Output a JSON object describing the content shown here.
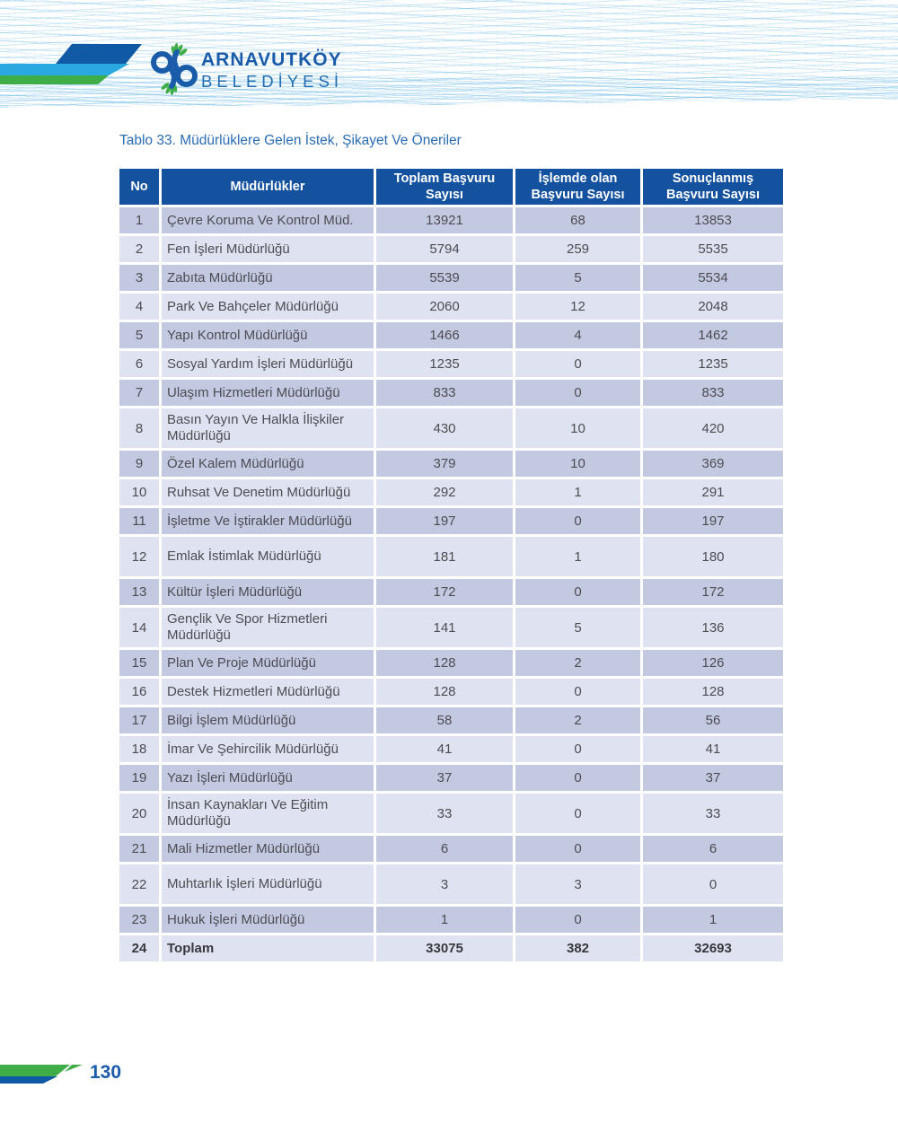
{
  "header": {
    "org_name_line1": "ARNAVUTKÖY",
    "org_name_line2": "BELEDİYESİ"
  },
  "title": "Tablo 33. Müdürlüklere Gelen İstek, Şikayet Ve Öneriler",
  "table": {
    "columns": [
      "No",
      "Müdürlükler",
      "Toplam Başvuru Sayısı",
      "İşlemde olan Başvuru Sayısı",
      "Sonuçlanmış Başvuru Sayısı"
    ],
    "rows": [
      {
        "no": "1",
        "name": "Çevre Koruma Ve Kontrol Müd.",
        "toplam": "13921",
        "islemde": "68",
        "sonuclanmis": "13853",
        "tall": false,
        "bold": false
      },
      {
        "no": "2",
        "name": "Fen İşleri Müdürlüğü",
        "toplam": "5794",
        "islemde": "259",
        "sonuclanmis": "5535",
        "tall": false,
        "bold": false
      },
      {
        "no": "3",
        "name": "Zabıta Müdürlüğü",
        "toplam": "5539",
        "islemde": "5",
        "sonuclanmis": "5534",
        "tall": false,
        "bold": false
      },
      {
        "no": "4",
        "name": "Park Ve Bahçeler Müdürlüğü",
        "toplam": "2060",
        "islemde": "12",
        "sonuclanmis": "2048",
        "tall": false,
        "bold": false
      },
      {
        "no": "5",
        "name": "Yapı Kontrol Müdürlüğü",
        "toplam": "1466",
        "islemde": "4",
        "sonuclanmis": "1462",
        "tall": false,
        "bold": false
      },
      {
        "no": "6",
        "name": "Sosyal Yardım İşleri Müdürlüğü",
        "toplam": "1235",
        "islemde": "0",
        "sonuclanmis": "1235",
        "tall": false,
        "bold": false
      },
      {
        "no": "7",
        "name": "Ulaşım Hizmetleri Müdürlüğü",
        "toplam": "833",
        "islemde": "0",
        "sonuclanmis": "833",
        "tall": false,
        "bold": false
      },
      {
        "no": "8",
        "name": "Basın Yayın Ve Halkla İlişkiler Müdürlüğü",
        "toplam": "430",
        "islemde": "10",
        "sonuclanmis": "420",
        "tall": true,
        "bold": false
      },
      {
        "no": "9",
        "name": "Özel Kalem Müdürlüğü",
        "toplam": "379",
        "islemde": "10",
        "sonuclanmis": "369",
        "tall": false,
        "bold": false
      },
      {
        "no": "10",
        "name": "Ruhsat Ve Denetim Müdürlüğü",
        "toplam": "292",
        "islemde": "1",
        "sonuclanmis": "291",
        "tall": false,
        "bold": false
      },
      {
        "no": "11",
        "name": "İşletme Ve İştirakler Müdürlüğü",
        "toplam": "197",
        "islemde": "0",
        "sonuclanmis": "197",
        "tall": false,
        "bold": false
      },
      {
        "no": "12",
        "name": "Emlak İstimlak Müdürlüğü",
        "toplam": "181",
        "islemde": "1",
        "sonuclanmis": "180",
        "tall": true,
        "bold": false
      },
      {
        "no": "13",
        "name": "Kültür İşleri Müdürlüğü",
        "toplam": "172",
        "islemde": "0",
        "sonuclanmis": "172",
        "tall": false,
        "bold": false
      },
      {
        "no": "14",
        "name": "Gençlik Ve Spor Hizmetleri Müdürlüğü",
        "toplam": "141",
        "islemde": "5",
        "sonuclanmis": "136",
        "tall": true,
        "bold": false
      },
      {
        "no": "15",
        "name": "Plan Ve Proje Müdürlüğü",
        "toplam": "128",
        "islemde": "2",
        "sonuclanmis": "126",
        "tall": false,
        "bold": false
      },
      {
        "no": "16",
        "name": "Destek Hizmetleri Müdürlüğü",
        "toplam": "128",
        "islemde": "0",
        "sonuclanmis": "128",
        "tall": false,
        "bold": false
      },
      {
        "no": "17",
        "name": "Bilgi İşlem Müdürlüğü",
        "toplam": "58",
        "islemde": "2",
        "sonuclanmis": "56",
        "tall": false,
        "bold": false
      },
      {
        "no": "18",
        "name": "İmar Ve Şehircilik Müdürlüğü",
        "toplam": "41",
        "islemde": "0",
        "sonuclanmis": "41",
        "tall": false,
        "bold": false
      },
      {
        "no": "19",
        "name": "Yazı İşleri Müdürlüğü",
        "toplam": "37",
        "islemde": "0",
        "sonuclanmis": "37",
        "tall": false,
        "bold": false
      },
      {
        "no": "20",
        "name": "İnsan Kaynakları Ve Eğitim Müdürlüğü",
        "toplam": "33",
        "islemde": "0",
        "sonuclanmis": "33",
        "tall": true,
        "bold": false
      },
      {
        "no": "21",
        "name": "Mali Hizmetler Müdürlüğü",
        "toplam": "6",
        "islemde": "0",
        "sonuclanmis": "6",
        "tall": false,
        "bold": false
      },
      {
        "no": "22",
        "name": "Muhtarlık İşleri Müdürlüğü",
        "toplam": "3",
        "islemde": "3",
        "sonuclanmis": "0",
        "tall": true,
        "bold": false
      },
      {
        "no": "23",
        "name": "Hukuk İşleri Müdürlüğü",
        "toplam": "1",
        "islemde": "0",
        "sonuclanmis": "1",
        "tall": false,
        "bold": false
      },
      {
        "no": "24",
        "name": "Toplam",
        "toplam": "33075",
        "islemde": "382",
        "sonuclanmis": "32693",
        "tall": false,
        "bold": true
      }
    ]
  },
  "footer": {
    "page_number": "130"
  },
  "colors": {
    "brand_blue": "#1a5caa",
    "stripe_dark_blue": "#1059a4",
    "stripe_cyan": "#2aa9e0",
    "stripe_green": "#3fae49",
    "table_header_bg": "#14519e",
    "row_dark": "#c3c9e1",
    "row_light": "#dfe3f1",
    "title_blue": "#2a6db5",
    "pattern_blue": "#a9d4ec"
  }
}
